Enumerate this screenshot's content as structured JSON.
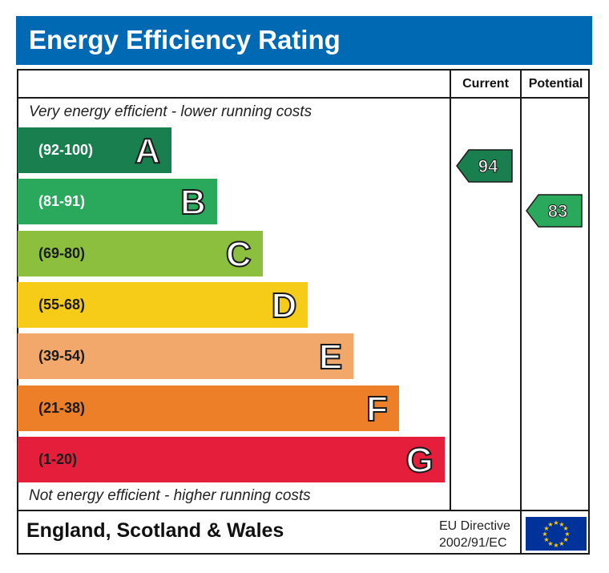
{
  "title": "Energy Efficiency Rating",
  "columns": {
    "current": "Current",
    "potential": "Potential"
  },
  "notes": {
    "top": "Very energy efficient - lower running costs",
    "bottom": "Not energy efficient - higher running costs"
  },
  "footer": {
    "region": "England, Scotland & Wales",
    "directive_line1": "EU Directive",
    "directive_line2": "2002/91/EC",
    "flag_icon": "eu-flag-icon"
  },
  "chart_data": {
    "type": "bar",
    "title": "Energy Efficiency Rating",
    "categories": [
      "A",
      "B",
      "C",
      "D",
      "E",
      "F",
      "G"
    ],
    "bands": [
      {
        "letter": "A",
        "range": "(92-100)",
        "min": 92,
        "max": 100,
        "color": "#1a7f4f",
        "label_color": "#ffffff"
      },
      {
        "letter": "B",
        "range": "(81-91)",
        "min": 81,
        "max": 91,
        "color": "#2aa85c",
        "label_color": "#ffffff"
      },
      {
        "letter": "C",
        "range": "(69-80)",
        "min": 69,
        "max": 80,
        "color": "#8dbf3e",
        "label_color": "#1a1a1a"
      },
      {
        "letter": "D",
        "range": "(55-68)",
        "min": 55,
        "max": 68,
        "color": "#f6cc18",
        "label_color": "#1a1a1a"
      },
      {
        "letter": "E",
        "range": "(39-54)",
        "min": 39,
        "max": 54,
        "color": "#f2a86a",
        "label_color": "#1a1a1a"
      },
      {
        "letter": "F",
        "range": "(21-38)",
        "min": 21,
        "max": 38,
        "color": "#ec7f27",
        "label_color": "#1a1a1a"
      },
      {
        "letter": "G",
        "range": "(1-20)",
        "min": 1,
        "max": 20,
        "color": "#e41e3b",
        "label_color": "#1a1a1a"
      }
    ],
    "current": {
      "value": 94,
      "band": "A",
      "color": "#1a7f4f"
    },
    "potential": {
      "value": 83,
      "band": "B",
      "color": "#2aa85c"
    }
  }
}
